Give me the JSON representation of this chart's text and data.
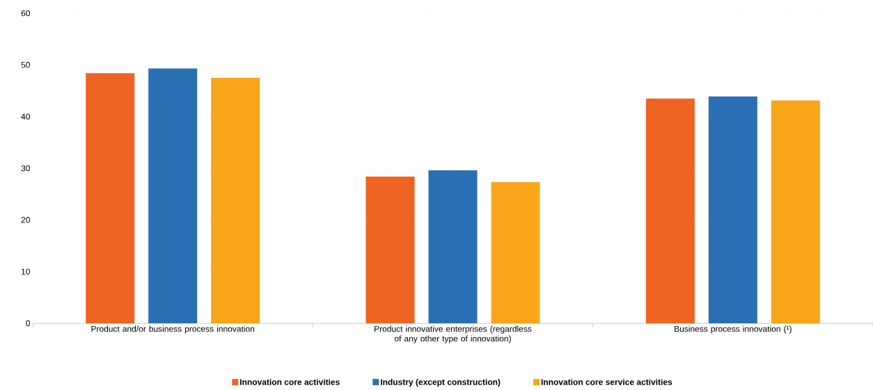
{
  "chart_data": {
    "type": "bar",
    "categories": [
      "Product and/or business process innovation",
      "Product innovative enterprises (regardless of any other type of innovation)",
      "Business process innovation (¹)"
    ],
    "series": [
      {
        "name": "Innovation core activities",
        "color": "#f06423",
        "values": [
          48.4,
          28.4,
          43.5
        ]
      },
      {
        "name": "Industry (except construction)",
        "color": "#2a6eb4",
        "values": [
          49.3,
          29.6,
          43.9
        ]
      },
      {
        "name": "Innovation core service activities",
        "color": "#f9a51a",
        "values": [
          47.5,
          27.3,
          43.1
        ]
      }
    ],
    "ylim": [
      0,
      60
    ],
    "yticks": [
      0,
      10,
      20,
      30,
      40,
      50,
      60
    ],
    "grid": "y",
    "legend": "bottom"
  }
}
